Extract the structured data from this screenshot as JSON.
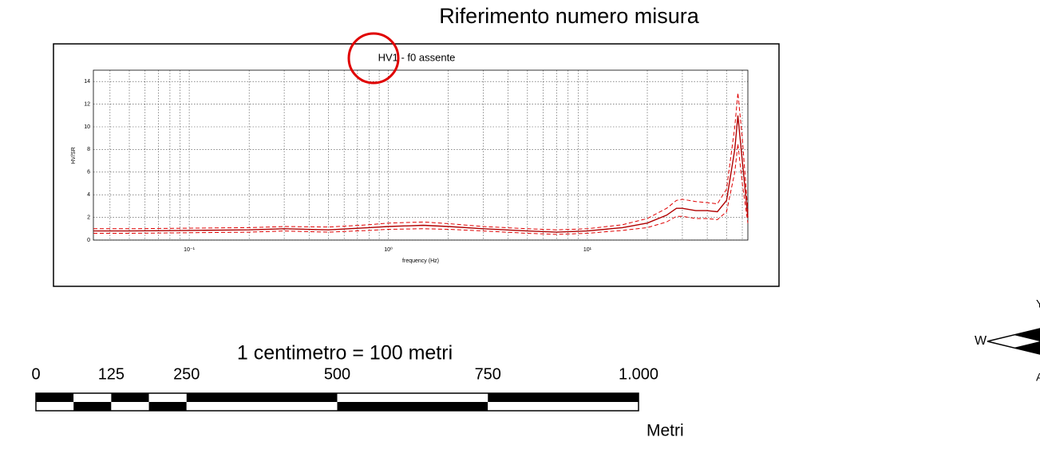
{
  "header": {
    "title": "Riferimento numero misura"
  },
  "chart_data": {
    "type": "line",
    "title": "HV1 - f0 assente",
    "xlabel": "frequency (Hz)",
    "ylabel": "HV/SR",
    "log_x": true,
    "grid": true,
    "x": [
      0.033,
      0.05,
      0.1,
      0.2,
      0.3,
      0.5,
      0.8,
      1,
      1.5,
      2,
      3,
      5,
      7,
      10,
      15,
      20,
      25,
      28,
      30,
      35,
      40,
      45,
      50,
      55,
      57,
      60,
      64
    ],
    "series": [
      {
        "color": "#e00000",
        "dash": true,
        "values": [
          1.0,
          1.0,
          1.05,
          1.1,
          1.2,
          1.15,
          1.35,
          1.5,
          1.6,
          1.45,
          1.2,
          1.0,
          0.9,
          1.0,
          1.35,
          1.9,
          2.8,
          3.5,
          3.6,
          3.4,
          3.3,
          3.2,
          4.5,
          10,
          13,
          9,
          2.5
        ]
      },
      {
        "color": "#b00000",
        "dash": false,
        "values": [
          0.8,
          0.8,
          0.85,
          0.9,
          1.0,
          0.9,
          1.1,
          1.2,
          1.3,
          1.2,
          1.0,
          0.8,
          0.7,
          0.8,
          1.1,
          1.5,
          2.2,
          2.8,
          2.8,
          2.6,
          2.6,
          2.5,
          3.5,
          8,
          11,
          7,
          2
        ]
      },
      {
        "color": "#e00000",
        "dash": true,
        "values": [
          0.6,
          0.6,
          0.65,
          0.7,
          0.8,
          0.7,
          0.85,
          0.95,
          1.0,
          0.95,
          0.8,
          0.6,
          0.5,
          0.6,
          0.85,
          1.1,
          1.6,
          2.1,
          2.1,
          1.9,
          1.9,
          1.8,
          2.5,
          6,
          8.5,
          5,
          1.5
        ]
      }
    ],
    "xlim": [
      0.033,
      64
    ],
    "xticks": [
      {
        "value": 0.1,
        "label": "10⁻¹"
      },
      {
        "value": 1,
        "label": "10⁰"
      },
      {
        "value": 10,
        "label": "10¹"
      }
    ],
    "ylim": [
      0,
      15
    ],
    "yticks": [
      0,
      2,
      4,
      6,
      8,
      10,
      12,
      14
    ]
  },
  "scale_bar": {
    "title": "1 centimetro = 100 metri",
    "ticks": [
      0,
      125,
      250,
      500,
      750,
      {
        "value": 1000,
        "label": "1.000"
      }
    ],
    "unit": "Metri"
  },
  "compass": {
    "west": "W"
  }
}
